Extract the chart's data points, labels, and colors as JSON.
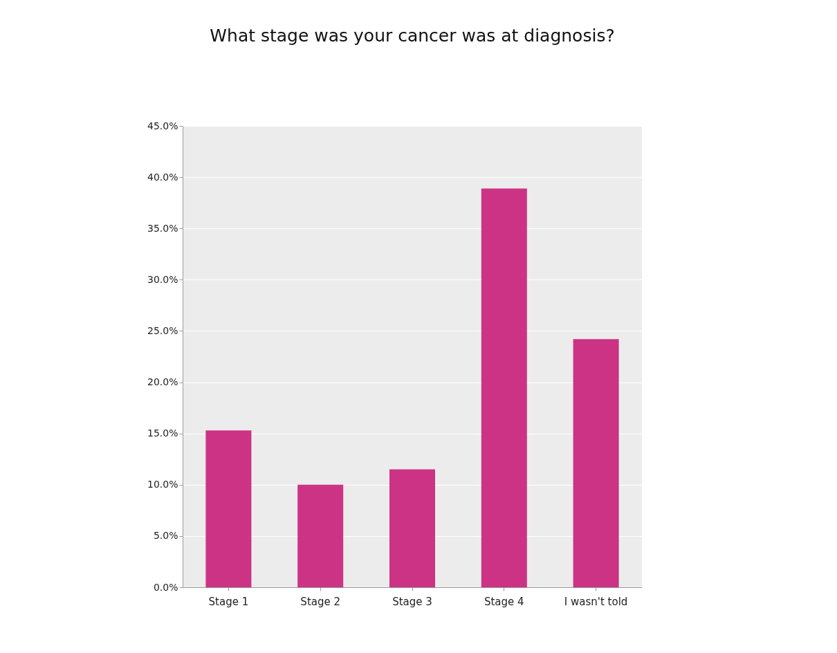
{
  "chart_data": {
    "type": "bar",
    "title": "What stage was your cancer was at diagnosis?",
    "categories": [
      "Stage 1",
      "Stage 2",
      "Stage 3",
      "Stage 4",
      "I wasn't told"
    ],
    "values": [
      15.3,
      10.0,
      11.5,
      38.9,
      24.2
    ],
    "color": "#cc3385",
    "ylim": [
      0,
      45
    ],
    "yticks": [
      {
        "value": 0,
        "label": "0.0%"
      },
      {
        "value": 5,
        "label": "5.0%"
      },
      {
        "value": 10,
        "label": "10.0%"
      },
      {
        "value": 15,
        "label": "15.0%"
      },
      {
        "value": 20,
        "label": "20.0%"
      },
      {
        "value": 25,
        "label": "25.0%"
      },
      {
        "value": 30,
        "label": "30.0%"
      },
      {
        "value": 35,
        "label": "35.0%"
      },
      {
        "value": 40,
        "label": "40.0%"
      },
      {
        "value": 45,
        "label": "45.0%"
      }
    ],
    "grid": "y"
  }
}
